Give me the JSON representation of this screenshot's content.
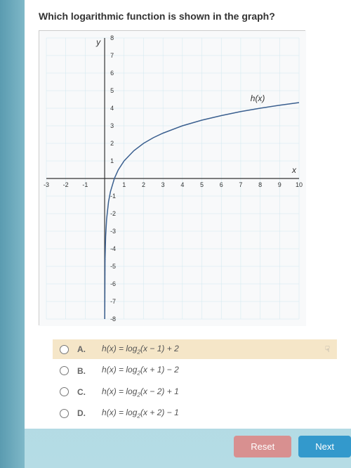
{
  "question": "Which logarithmic function is shown in the graph?",
  "graph": {
    "type": "line",
    "function_label": "h(x)",
    "x_axis_label": "x",
    "y_axis_label": "y",
    "xlim": [
      -3,
      10
    ],
    "ylim": [
      -8,
      8
    ],
    "xtick_step": 1,
    "ytick_step": 1,
    "background_color": "#f8f9fa",
    "grid_color": "#cfe8ef",
    "axis_color": "#333333",
    "curve_color": "#3a5f8f",
    "curve_width": 1.5,
    "asymptote_x": 0,
    "label_fontsize": 11,
    "data_points": [
      [
        0.02,
        -4.64
      ],
      [
        0.05,
        -3.32
      ],
      [
        0.1,
        -2.32
      ],
      [
        0.2,
        -1.32
      ],
      [
        0.3,
        -0.74
      ],
      [
        0.5,
        0
      ],
      [
        0.7,
        0.49
      ],
      [
        1,
        1
      ],
      [
        1.5,
        1.58
      ],
      [
        2,
        2
      ],
      [
        2.5,
        2.32
      ],
      [
        3,
        2.58
      ],
      [
        4,
        3
      ],
      [
        5,
        3.32
      ],
      [
        6,
        3.58
      ],
      [
        7,
        3.81
      ],
      [
        8,
        4
      ],
      [
        9,
        4.17
      ],
      [
        10,
        4.32
      ]
    ]
  },
  "options": [
    {
      "letter": "A.",
      "text": "h(x) = log₂(x − 1) + 2",
      "selected": true
    },
    {
      "letter": "B.",
      "text": "h(x) = log₂(x + 1) − 2",
      "selected": false
    },
    {
      "letter": "C.",
      "text": "h(x) = log₂(x − 2) + 1",
      "selected": false
    },
    {
      "letter": "D.",
      "text": "h(x) = log₂(x + 2) − 1",
      "selected": false
    }
  ],
  "buttons": {
    "reset": "Reset",
    "next": "Next"
  },
  "cursor_glyph": "☟"
}
